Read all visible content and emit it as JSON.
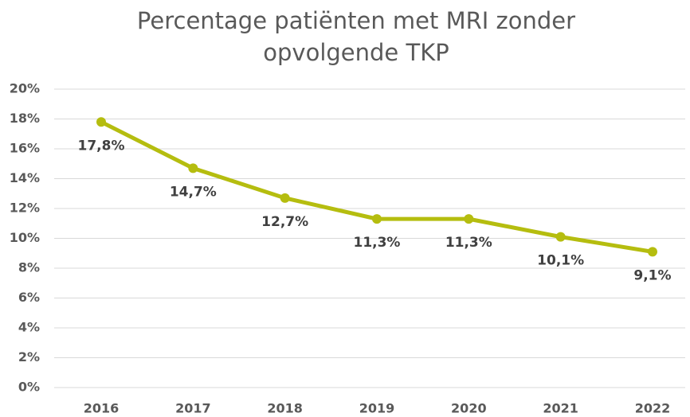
{
  "chart_data": {
    "type": "line",
    "title": [
      "Percentage patiënten met MRI zonder",
      "opvolgende TKP"
    ],
    "categories": [
      "2016",
      "2017",
      "2018",
      "2019",
      "2020",
      "2021",
      "2022"
    ],
    "series": [
      {
        "color": "#b5bd0f",
        "values": [
          17.8,
          14.7,
          12.7,
          11.3,
          11.3,
          10.1,
          9.1
        ],
        "value_labels": [
          "17,8%",
          "14,7%",
          "12,7%",
          "11,3%",
          "11,3%",
          "10,1%",
          "9,1%"
        ]
      }
    ],
    "ylim": [
      0,
      20
    ],
    "yticks": [
      {
        "value": 0,
        "label": "0%"
      },
      {
        "value": 2,
        "label": "2%"
      },
      {
        "value": 4,
        "label": "4%"
      },
      {
        "value": 6,
        "label": "6%"
      },
      {
        "value": 8,
        "label": "8%"
      },
      {
        "value": 10,
        "label": "10%"
      },
      {
        "value": 12,
        "label": "12%"
      },
      {
        "value": 14,
        "label": "14%"
      },
      {
        "value": 16,
        "label": "16%"
      },
      {
        "value": 18,
        "label": "18%"
      },
      {
        "value": 20,
        "label": "20%"
      }
    ],
    "grid": true
  }
}
